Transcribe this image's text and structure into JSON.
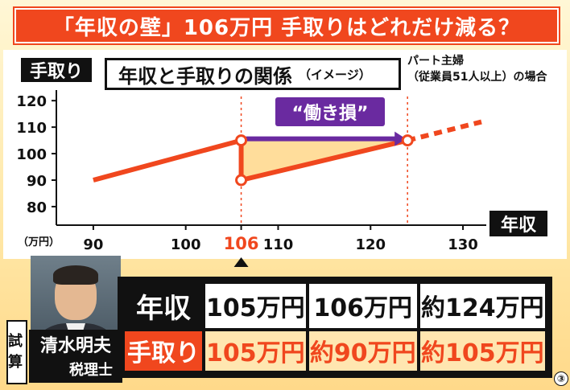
{
  "banner": {
    "title": "「年収の壁」106万円 手取りはどれだけ減る？"
  },
  "chart_header": {
    "tag": "手取り",
    "title": "年収と手取りの関係",
    "subtitle": "（イメージ）",
    "case_line1": "パート主婦",
    "case_line2": "（従業員51人以上）の場合",
    "x_tag": "年収",
    "unit": "（万円）",
    "callout": "“働き損”"
  },
  "chart_data": {
    "type": "line",
    "xlabel": "年収",
    "ylabel": "手取り",
    "x_ticks": [
      90,
      100,
      106,
      110,
      120,
      130
    ],
    "y_ticks": [
      80,
      90,
      100,
      110,
      120
    ],
    "xlim": [
      86,
      132
    ],
    "ylim": [
      73,
      124
    ],
    "highlight_x": 106,
    "series": [
      {
        "values": [
          [
            90,
            90
          ],
          [
            106,
            105
          ]
        ]
      },
      {
        "values": [
          [
            106,
            90
          ],
          [
            124,
            105
          ]
        ]
      },
      {
        "values": [
          [
            124,
            105
          ],
          [
            132,
            112
          ]
        ]
      }
    ],
    "markers": [
      [
        106,
        105
      ],
      [
        106,
        90
      ],
      [
        124,
        105
      ]
    ],
    "gap_arrow": {
      "from": [
        106,
        105
      ],
      "to": [
        124,
        105
      ]
    },
    "colors": {
      "line": "#f0471e",
      "fill": "#ffd27a",
      "arrow": "#6a2aa0",
      "highlight_tick": "#f0471e"
    }
  },
  "person": {
    "badge": "試算",
    "name": "清水明夫",
    "title": "税理士"
  },
  "table": {
    "rows": [
      {
        "label": "年収",
        "cells": [
          "105万円",
          "106万円",
          "約124万円"
        ]
      },
      {
        "label": "手取り",
        "cells": [
          "105万円",
          "約90万円",
          "約105万円"
        ]
      }
    ]
  },
  "footnote": "③"
}
